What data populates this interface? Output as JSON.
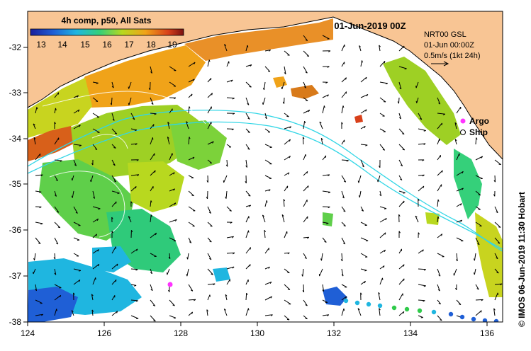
{
  "colorbar": {
    "title": "4h comp, p50, All Sats",
    "ticks": [
      "13",
      "14",
      "15",
      "16",
      "17",
      "18",
      "19"
    ],
    "colors": [
      "#1a1f9c",
      "#1f5fd6",
      "#1fb6e0",
      "#35d07a",
      "#b8d81f",
      "#f0a319",
      "#d8401a",
      "#7a1010"
    ]
  },
  "header": {
    "date": "01-Jun-2019 00Z"
  },
  "info_box": {
    "line1": "NRT00 GSL",
    "line2": "01-Jun 00:00Z",
    "line3": "0.5m/s (1kt 24h)"
  },
  "legend": {
    "argo": "Argo",
    "ship": "Ship",
    "argo_color": "#ff33ff"
  },
  "credit": "© IMOS 06-Jun-2019 11:30 Hobart",
  "axes": {
    "x_ticks": [
      "124",
      "126",
      "128",
      "130",
      "132",
      "134",
      "136"
    ],
    "y_ticks": [
      "-32",
      "-33",
      "-34",
      "-35",
      "-36",
      "-37",
      "-38"
    ]
  },
  "colors": {
    "land": "#f8c594",
    "current": "#33d6e6",
    "arrow": "#000000"
  }
}
